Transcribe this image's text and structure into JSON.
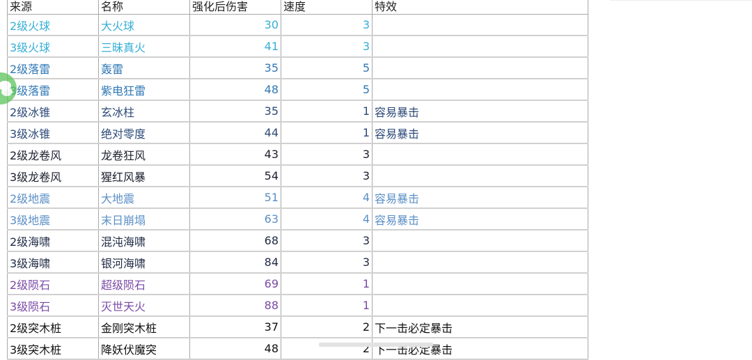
{
  "headers": [
    "来源",
    "名称",
    "强化后伤害",
    "速度",
    "特效"
  ],
  "rows": [
    {
      "source": "2级火球",
      "name": "大火球",
      "damage": "30",
      "speed": "3",
      "effect": "",
      "color": "#36aed6"
    },
    {
      "source": "3级火球",
      "name": "三昧真火",
      "damage": "41",
      "speed": "3",
      "effect": "",
      "color": "#36aed6"
    },
    {
      "source": "2级落雷",
      "name": "轰雷",
      "damage": "35",
      "speed": "5",
      "effect": "",
      "color": "#2f78b6"
    },
    {
      "source": "3级落雷",
      "name": "紫电狂雷",
      "damage": "48",
      "speed": "5",
      "effect": "",
      "color": "#2f78b6"
    },
    {
      "source": "2级冰锥",
      "name": "玄冰柱",
      "damage": "35",
      "speed": "1",
      "effect": "容易暴击",
      "color": "#2d4a78"
    },
    {
      "source": "3级冰锥",
      "name": "绝对零度",
      "damage": "44",
      "speed": "1",
      "effect": "容易暴击",
      "color": "#2d4a78"
    },
    {
      "source": "2级龙卷风",
      "name": "龙卷狂风",
      "damage": "43",
      "speed": "3",
      "effect": "",
      "color": "#1c1f2e"
    },
    {
      "source": "3级龙卷风",
      "name": "猩红风暴",
      "damage": "54",
      "speed": "3",
      "effect": "",
      "color": "#1c1f2e"
    },
    {
      "source": "2级地震",
      "name": "大地震",
      "damage": "51",
      "speed": "4",
      "effect": "容易暴击",
      "color": "#5b8fc6"
    },
    {
      "source": "3级地震",
      "name": "末日崩塌",
      "damage": "63",
      "speed": "4",
      "effect": "容易暴击",
      "color": "#5b8fc6"
    },
    {
      "source": "2级海啸",
      "name": "混沌海啸",
      "damage": "68",
      "speed": "3",
      "effect": "",
      "color": "#1e2a44"
    },
    {
      "source": "3级海啸",
      "name": "银河海啸",
      "damage": "84",
      "speed": "3",
      "effect": "",
      "color": "#1e2a44"
    },
    {
      "source": "2级陨石",
      "name": "超级陨石",
      "damage": "69",
      "speed": "1",
      "effect": "",
      "color": "#7a4aa6"
    },
    {
      "source": "3级陨石",
      "name": "灭世天火",
      "damage": "88",
      "speed": "1",
      "effect": "",
      "color": "#7a4aa6"
    },
    {
      "source": "2级突木桩",
      "name": "金刚突木桩",
      "damage": "37",
      "speed": "2",
      "effect": "下一击必定暴击",
      "color": "#111111"
    },
    {
      "source": "3级突木桩",
      "name": "降妖伏魔突",
      "damage": "48",
      "speed": "2",
      "effect": "下一击必定暴击",
      "color": "#111111"
    }
  ],
  "icons": {
    "floating": "wechat-icon"
  }
}
